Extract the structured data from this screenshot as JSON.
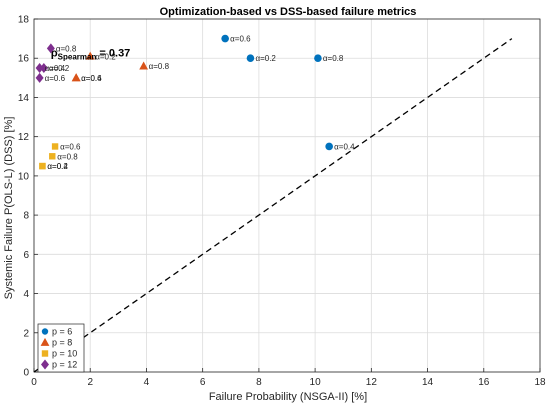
{
  "chart_data": {
    "type": "scatter",
    "title": "Optimization-based vs DSS-based failure metrics",
    "xlabel": "Failure Probability (NSGA-II) [%]",
    "ylabel": "Systemic Failure P(OLS-L) (DSS) [%]",
    "xlim": [
      0,
      18
    ],
    "ylim": [
      0,
      18
    ],
    "xticks": [
      "0",
      "2",
      "4",
      "6",
      "8",
      "10",
      "12",
      "14",
      "16",
      "18"
    ],
    "yticks": [
      "0",
      "2",
      "4",
      "6",
      "8",
      "10",
      "12",
      "14",
      "16",
      "18"
    ],
    "grid": true,
    "legend_position": "bottom-left",
    "reference_line": {
      "style": "dashed",
      "from": [
        0,
        0
      ],
      "to": [
        17,
        17
      ]
    },
    "annotation": {
      "symbol": "ρ",
      "subscript": "Spearman",
      "text": " = 0.37",
      "x": 0.6,
      "y": 16.3
    },
    "series": [
      {
        "name": "p = 6",
        "marker": "circle",
        "color": "#0072BD",
        "points": [
          {
            "x": 6.8,
            "y": 17.0,
            "label": "α=0.6"
          },
          {
            "x": 7.7,
            "y": 16.0,
            "label": "α=0.2"
          },
          {
            "x": 10.1,
            "y": 16.0,
            "label": "α=0.8"
          },
          {
            "x": 10.5,
            "y": 11.5,
            "label": "α=0.4"
          }
        ]
      },
      {
        "name": "p = 8",
        "marker": "triangle",
        "color": "#D95319",
        "points": [
          {
            "x": 2.0,
            "y": 16.1,
            "label": "α=0.2"
          },
          {
            "x": 3.9,
            "y": 15.6,
            "label": "α=0.8"
          },
          {
            "x": 1.5,
            "y": 15.0,
            "label": "α=0.4"
          },
          {
            "x": 1.5,
            "y": 15.0,
            "label": "α=0.6"
          }
        ]
      },
      {
        "name": "p = 10",
        "marker": "square",
        "color": "#EDB120",
        "points": [
          {
            "x": 0.75,
            "y": 11.5,
            "label": "α=0.6"
          },
          {
            "x": 0.65,
            "y": 11.0,
            "label": "α=0.8"
          },
          {
            "x": 0.3,
            "y": 10.5,
            "label": "α=0.4"
          },
          {
            "x": 0.3,
            "y": 10.5,
            "label": "α=0.2"
          }
        ]
      },
      {
        "name": "p = 12",
        "marker": "diamond",
        "color": "#7E2F8E",
        "points": [
          {
            "x": 0.6,
            "y": 16.5,
            "label": "α=0.8"
          },
          {
            "x": 0.35,
            "y": 15.5,
            "label": "α=0.2"
          },
          {
            "x": 0.2,
            "y": 15.5,
            "label": "α=0.4"
          },
          {
            "x": 0.2,
            "y": 15.0,
            "label": "α=0.6"
          }
        ]
      }
    ]
  }
}
